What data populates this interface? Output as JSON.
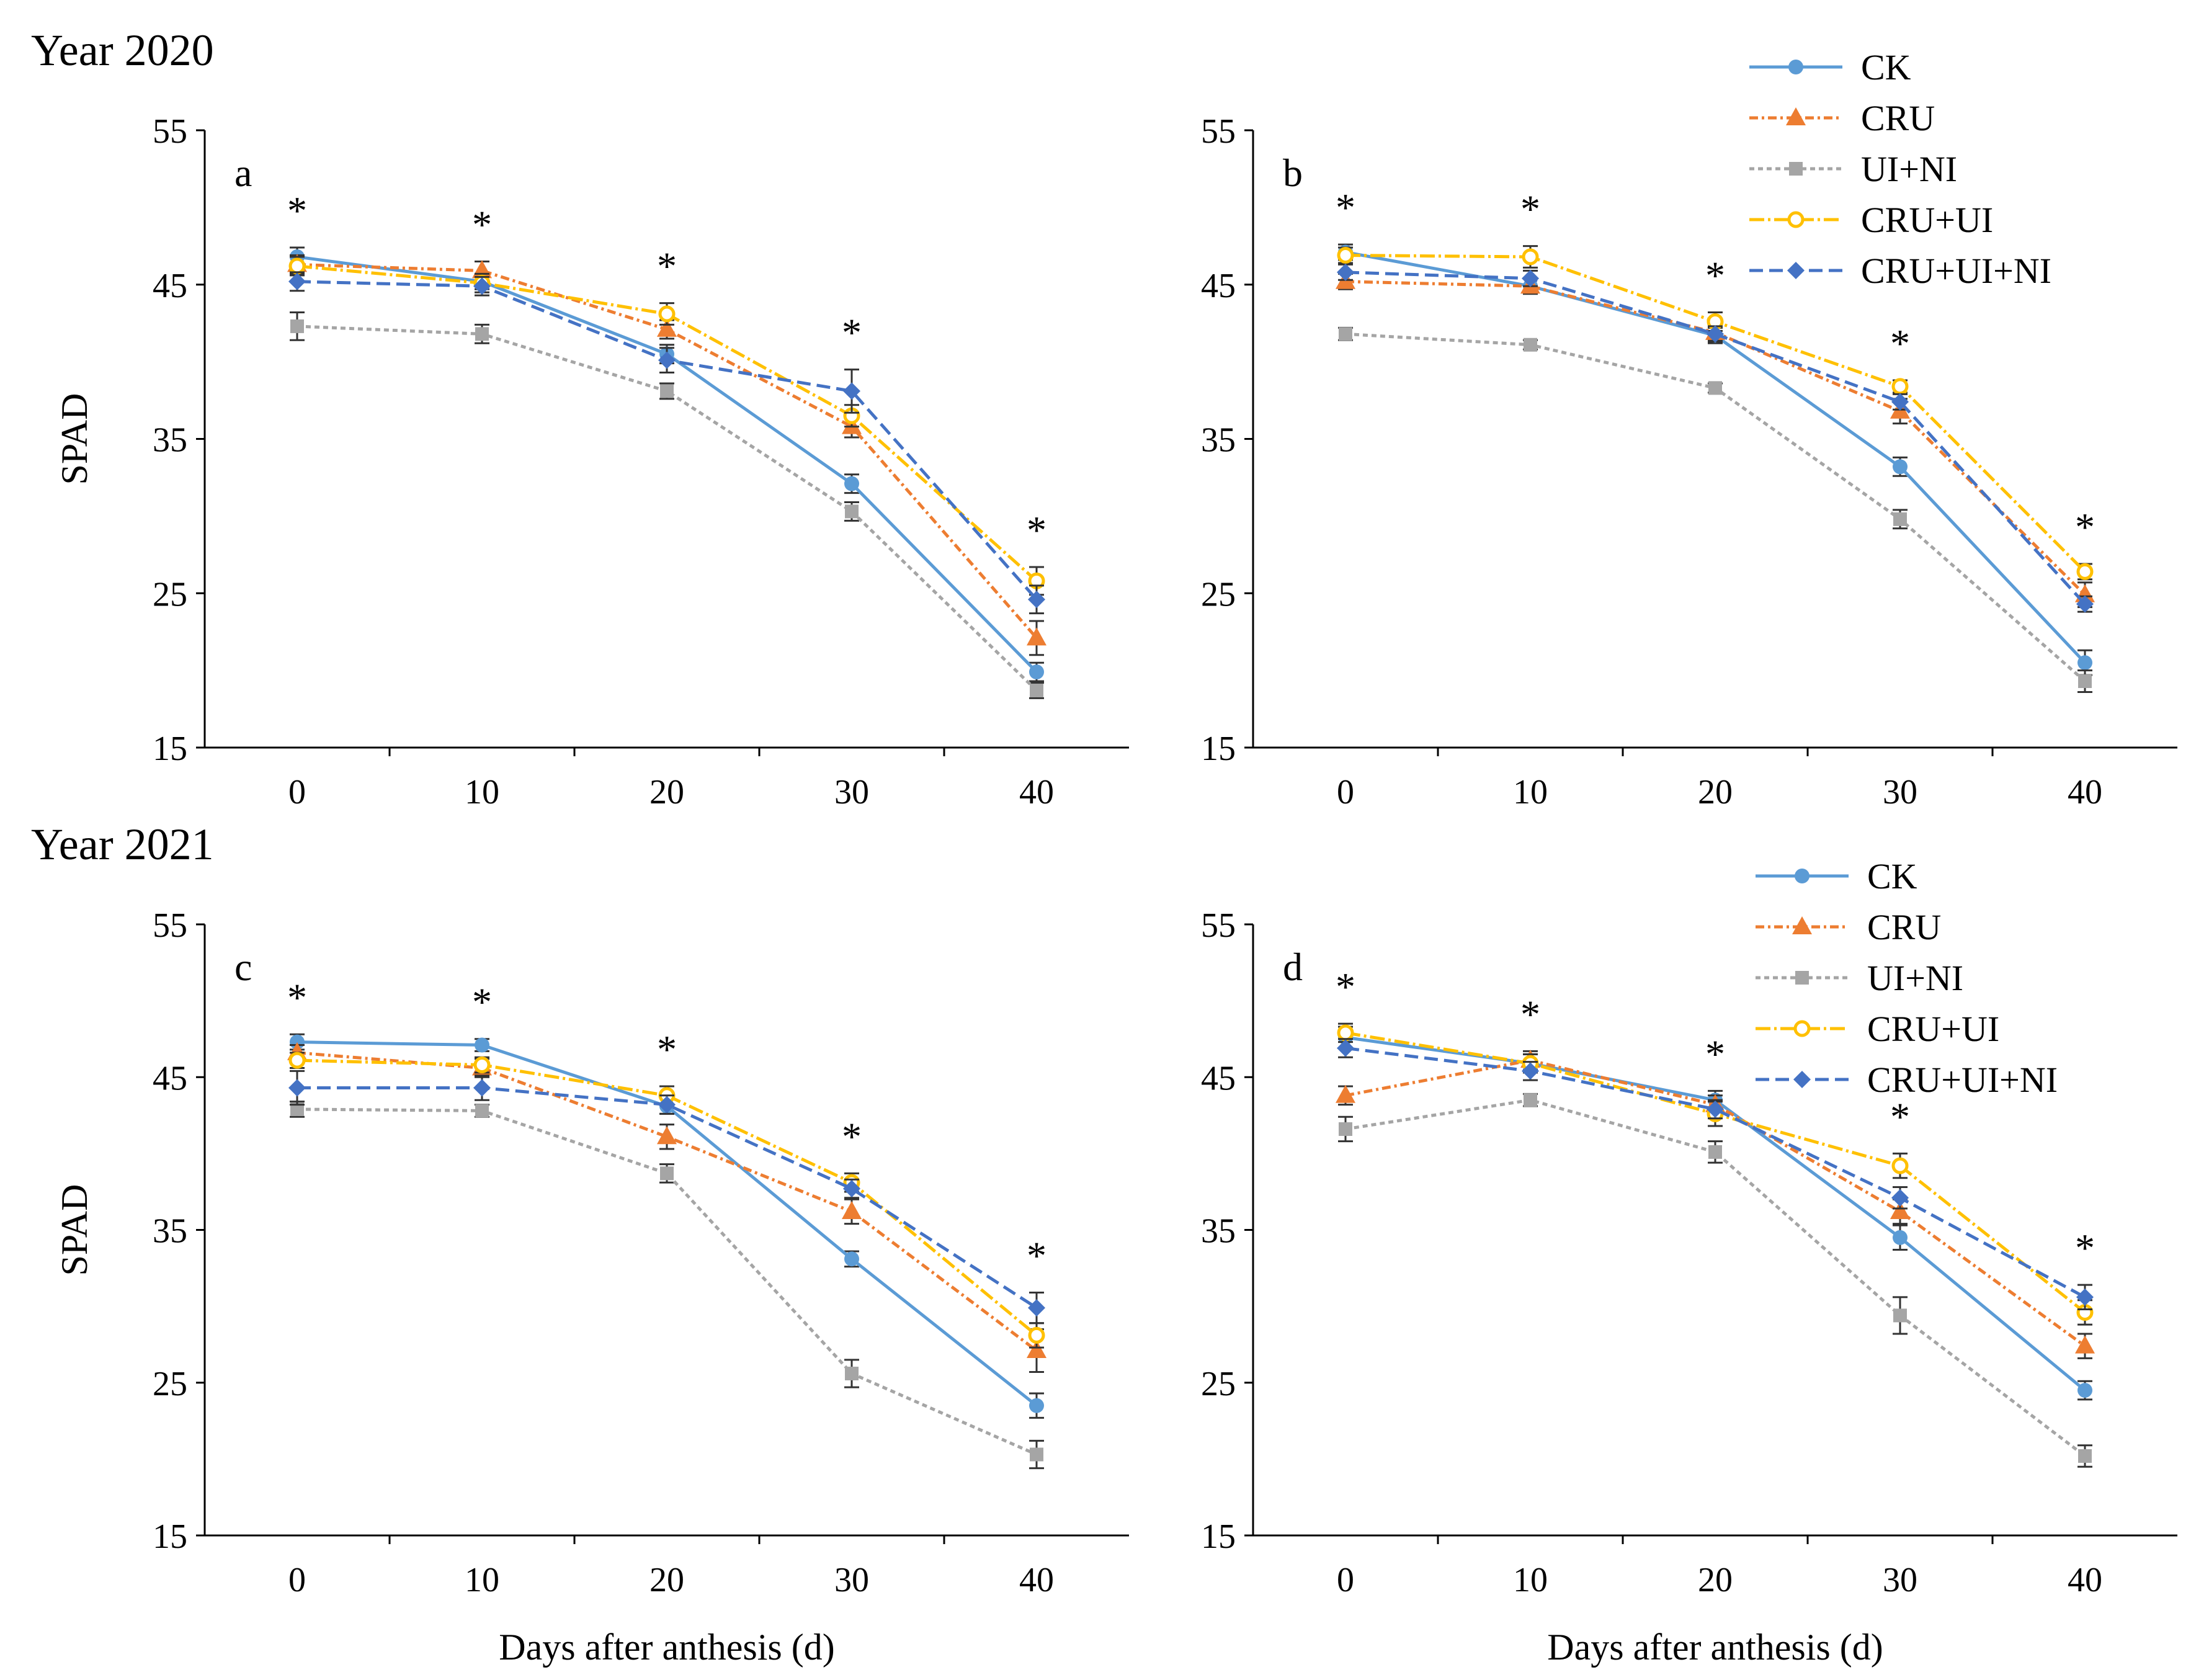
{
  "figure": {
    "year_2020_label": "Year 2020",
    "year_2021_label": "Year 2021"
  },
  "series_styles": [
    {
      "name": "CK",
      "color": "#5B9BD5",
      "marker": "circle",
      "dash": ""
    },
    {
      "name": "CRU",
      "color": "#ED7D31",
      "marker": "triangle",
      "dash": "14 6 4 6"
    },
    {
      "name": "UI+NI",
      "color": "#A5A5A5",
      "marker": "square",
      "dash": "8 6"
    },
    {
      "name": "CRU+UI",
      "color": "#FFC000",
      "marker": "open-circle",
      "dash": "24 6 4 6"
    },
    {
      "name": "CRU+UI+NI",
      "color": "#4472C4",
      "marker": "diamond",
      "dash": "22 10"
    }
  ],
  "chart_data": [
    {
      "type": "line",
      "panel_label": "a",
      "ylabel": "SPAD",
      "xlabel": "",
      "x": [
        0,
        10,
        20,
        30,
        40
      ],
      "ylim": [
        15,
        55
      ],
      "yticks": [
        15,
        25,
        35,
        45,
        55
      ],
      "legend": "top-right",
      "series": [
        {
          "name": "CK",
          "values": [
            46.8,
            45.2,
            40.5,
            32.1,
            19.9
          ],
          "errors": [
            0.6,
            0.5,
            0.6,
            0.6,
            0.6
          ]
        },
        {
          "name": "CRU",
          "values": [
            46.3,
            45.9,
            42.1,
            35.8,
            22.1
          ],
          "errors": [
            0.6,
            0.6,
            0.6,
            0.7,
            1.1
          ]
        },
        {
          "name": "UI+NI",
          "values": [
            42.3,
            41.8,
            38.1,
            30.3,
            18.7
          ],
          "errors": [
            0.9,
            0.6,
            0.5,
            0.6,
            0.5
          ]
        },
        {
          "name": "CRU+UI",
          "values": [
            46.2,
            45.1,
            43.1,
            36.5,
            25.8
          ],
          "errors": [
            0.6,
            0.6,
            0.7,
            0.7,
            0.9
          ]
        },
        {
          "name": "CRU+UI+NI",
          "values": [
            45.2,
            44.9,
            40.1,
            38.1,
            24.6
          ],
          "errors": [
            0.6,
            0.6,
            0.8,
            1.4,
            0.9
          ]
        }
      ],
      "significance": [
        "*",
        "*",
        "*",
        "*",
        "*"
      ]
    },
    {
      "type": "line",
      "panel_label": "b",
      "ylabel": "",
      "xlabel": "",
      "x": [
        0,
        10,
        20,
        30,
        40
      ],
      "ylim": [
        15,
        55
      ],
      "yticks": [
        15,
        25,
        35,
        45,
        55
      ],
      "legend": "none",
      "series": [
        {
          "name": "CK",
          "values": [
            47.1,
            44.9,
            41.7,
            33.2,
            20.5
          ],
          "errors": [
            0.5,
            0.5,
            0.5,
            0.6,
            0.8
          ]
        },
        {
          "name": "CRU",
          "values": [
            45.2,
            44.9,
            41.9,
            36.8,
            24.9
          ],
          "errors": [
            0.5,
            0.5,
            0.5,
            0.8,
            0.8
          ]
        },
        {
          "name": "UI+NI",
          "values": [
            41.8,
            41.1,
            38.3,
            29.8,
            19.3
          ],
          "errors": [
            0.4,
            0.3,
            0.3,
            0.6,
            0.7
          ]
        },
        {
          "name": "CRU+UI",
          "values": [
            46.9,
            46.8,
            42.6,
            38.4,
            26.4
          ],
          "errors": [
            0.5,
            0.7,
            0.6,
            0.4,
            0.5
          ]
        },
        {
          "name": "CRU+UI+NI",
          "values": [
            45.8,
            45.4,
            41.8,
            37.4,
            24.3
          ],
          "errors": [
            0.5,
            0.5,
            0.5,
            0.5,
            0.5
          ]
        }
      ],
      "significance": [
        "*",
        "*",
        "*",
        "*",
        "*"
      ]
    },
    {
      "type": "line",
      "panel_label": "c",
      "ylabel": "SPAD",
      "xlabel": "Days after anthesis (d)",
      "x": [
        0,
        10,
        20,
        30,
        40
      ],
      "ylim": [
        15,
        55
      ],
      "yticks": [
        15,
        25,
        35,
        45,
        55
      ],
      "legend": "none",
      "series": [
        {
          "name": "CK",
          "values": [
            47.3,
            47.1,
            43.1,
            33.1,
            23.5
          ],
          "errors": [
            0.5,
            0.4,
            0.5,
            0.5,
            0.8
          ]
        },
        {
          "name": "CRU",
          "values": [
            46.6,
            45.6,
            41.1,
            36.2,
            27.1
          ],
          "errors": [
            0.5,
            0.6,
            0.8,
            0.8,
            1.4
          ]
        },
        {
          "name": "UI+NI",
          "values": [
            42.9,
            42.8,
            38.7,
            25.6,
            20.3
          ],
          "errors": [
            0.5,
            0.4,
            0.6,
            0.9,
            0.9
          ]
        },
        {
          "name": "CRU+UI",
          "values": [
            46.1,
            45.8,
            43.8,
            38.1,
            28.1
          ],
          "errors": [
            0.5,
            0.5,
            0.6,
            0.6,
            0.8
          ]
        },
        {
          "name": "CRU+UI+NI",
          "values": [
            44.3,
            44.3,
            43.2,
            37.7,
            29.9
          ],
          "errors": [
            1.1,
            0.8,
            0.6,
            0.6,
            1.0
          ]
        }
      ],
      "significance": [
        "*",
        "*",
        "*",
        "*",
        "*"
      ]
    },
    {
      "type": "line",
      "panel_label": "d",
      "ylabel": "",
      "xlabel": "Days after anthesis (d)",
      "x": [
        0,
        10,
        20,
        30,
        40
      ],
      "ylim": [
        15,
        55
      ],
      "yticks": [
        15,
        25,
        35,
        45,
        55
      ],
      "legend": "top-right",
      "series": [
        {
          "name": "CK",
          "values": [
            47.6,
            45.9,
            43.5,
            34.5,
            24.5
          ],
          "errors": [
            0.7,
            0.6,
            0.6,
            0.8,
            0.6
          ]
        },
        {
          "name": "CRU",
          "values": [
            43.8,
            46.1,
            43.2,
            36.2,
            27.4
          ],
          "errors": [
            0.6,
            0.6,
            0.6,
            0.8,
            0.8
          ]
        },
        {
          "name": "UI+NI",
          "values": [
            41.6,
            43.5,
            40.1,
            29.4,
            20.2
          ],
          "errors": [
            0.8,
            0.4,
            0.7,
            1.2,
            0.7
          ]
        },
        {
          "name": "CRU+UI",
          "values": [
            47.9,
            45.9,
            42.6,
            39.2,
            29.6
          ],
          "errors": [
            0.6,
            0.6,
            0.8,
            0.8,
            0.8
          ]
        },
        {
          "name": "CRU+UI+NI",
          "values": [
            46.9,
            45.4,
            42.9,
            37.1,
            30.6
          ],
          "errors": [
            0.6,
            0.6,
            0.6,
            0.7,
            0.8
          ]
        }
      ],
      "significance": [
        "*",
        "*",
        "*",
        "*",
        "*"
      ]
    }
  ]
}
